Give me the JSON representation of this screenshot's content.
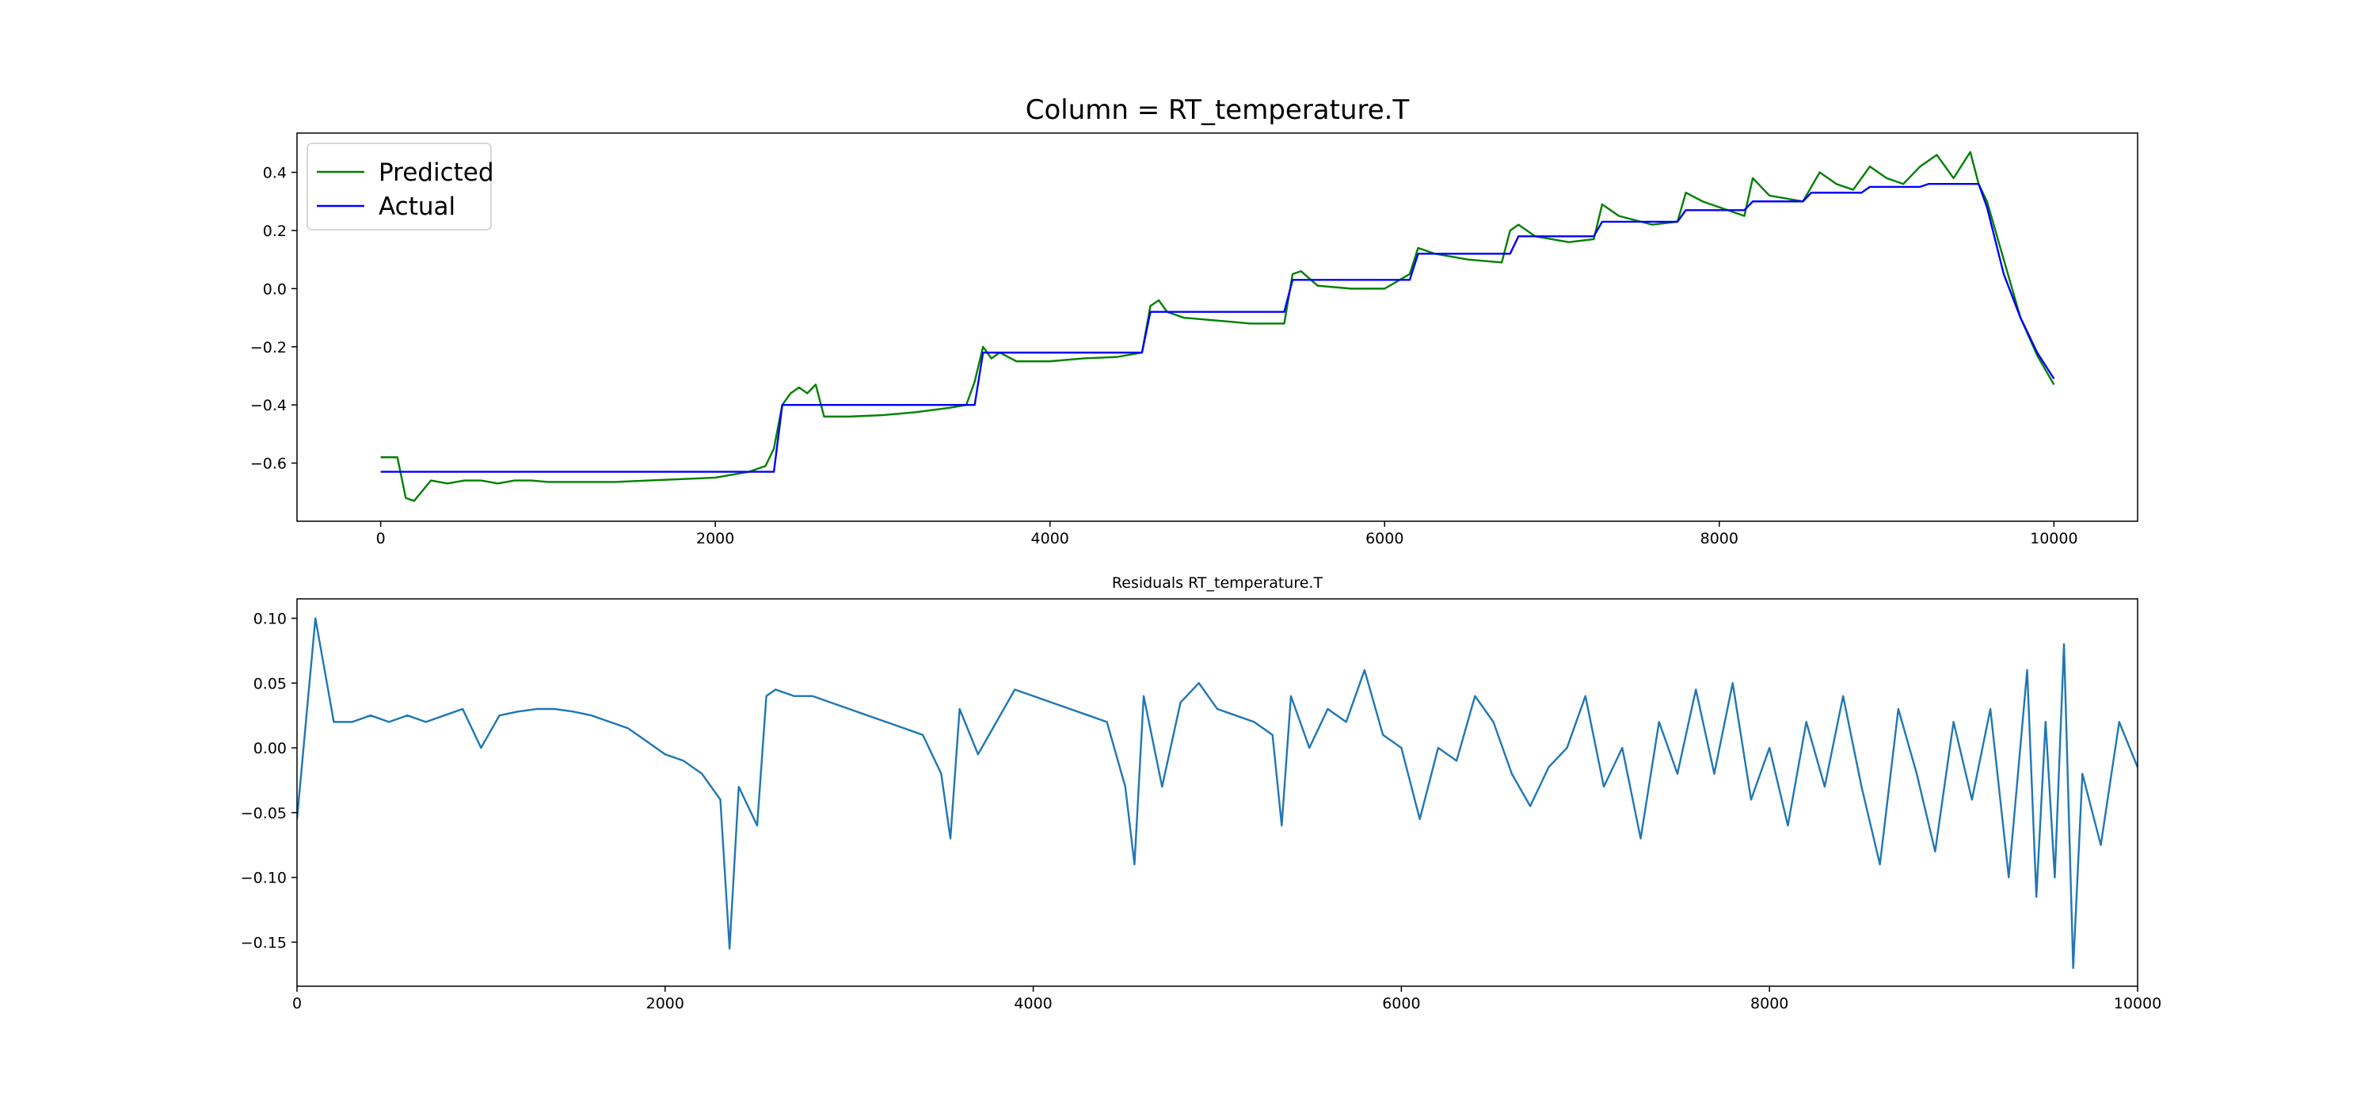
{
  "chart_data": [
    {
      "type": "line",
      "title": "Column = RT_temperature.T",
      "xlim": [
        -500,
        10500
      ],
      "xticks": [
        0,
        2000,
        4000,
        6000,
        8000,
        10000
      ],
      "ylim": [
        -0.8,
        0.535
      ],
      "yticks": [
        {
          "value": -0.6,
          "label": "−0.6"
        },
        {
          "value": -0.4,
          "label": "−0.4"
        },
        {
          "value": -0.2,
          "label": "−0.2"
        },
        {
          "value": 0,
          "label": "0.0"
        },
        0.2,
        0.4
      ],
      "legend": "upper left",
      "series": [
        {
          "name": "Predicted",
          "color": "#008000",
          "x": [
            0,
            100,
            150,
            200,
            300,
            400,
            500,
            600,
            700,
            800,
            900,
            1000,
            1200,
            1400,
            1600,
            1800,
            2000,
            2100,
            2200,
            2300,
            2350,
            2400,
            2450,
            2500,
            2550,
            2600,
            2650,
            2800,
            3000,
            3200,
            3400,
            3500,
            3550,
            3600,
            3650,
            3700,
            3800,
            4000,
            4200,
            4400,
            4550,
            4600,
            4650,
            4700,
            4800,
            5000,
            5200,
            5400,
            5450,
            5500,
            5600,
            5800,
            6000,
            6150,
            6200,
            6300,
            6500,
            6700,
            6750,
            6800,
            6900,
            7100,
            7250,
            7300,
            7400,
            7600,
            7750,
            7800,
            7900,
            8000,
            8150,
            8200,
            8300,
            8500,
            8600,
            8700,
            8800,
            8900,
            9000,
            9100,
            9200,
            9300,
            9400,
            9500,
            9550,
            9600,
            9700,
            9800,
            9900,
            10000
          ],
          "values": [
            -0.58,
            -0.58,
            -0.72,
            -0.73,
            -0.66,
            -0.67,
            -0.66,
            -0.66,
            -0.67,
            -0.66,
            -0.66,
            -0.665,
            -0.665,
            -0.665,
            -0.66,
            -0.655,
            -0.65,
            -0.64,
            -0.63,
            -0.61,
            -0.55,
            -0.4,
            -0.36,
            -0.34,
            -0.36,
            -0.33,
            -0.44,
            -0.44,
            -0.435,
            -0.425,
            -0.41,
            -0.4,
            -0.32,
            -0.2,
            -0.24,
            -0.22,
            -0.25,
            -0.25,
            -0.24,
            -0.235,
            -0.22,
            -0.06,
            -0.04,
            -0.08,
            -0.1,
            -0.11,
            -0.12,
            -0.12,
            0.05,
            0.06,
            0.01,
            0,
            0,
            0.05,
            0.14,
            0.12,
            0.1,
            0.09,
            0.2,
            0.22,
            0.18,
            0.16,
            0.17,
            0.29,
            0.25,
            0.22,
            0.23,
            0.33,
            0.3,
            0.28,
            0.25,
            0.38,
            0.32,
            0.3,
            0.4,
            0.36,
            0.34,
            0.42,
            0.38,
            0.36,
            0.42,
            0.46,
            0.38,
            0.47,
            0.36,
            0.3,
            0.1,
            -0.1,
            -0.23,
            -0.33
          ]
        },
        {
          "name": "Actual",
          "color": "#0000ff",
          "x": [
            0,
            2350,
            2400,
            3550,
            3600,
            4550,
            4600,
            5400,
            5450,
            6150,
            6200,
            6750,
            6800,
            7250,
            7300,
            7750,
            7800,
            8150,
            8200,
            8500,
            8550,
            8850,
            8900,
            9200,
            9250,
            9550,
            9600,
            9700,
            9800,
            9900,
            10000
          ],
          "values": [
            -0.63,
            -0.63,
            -0.4,
            -0.4,
            -0.22,
            -0.22,
            -0.08,
            -0.08,
            0.03,
            0.03,
            0.12,
            0.12,
            0.18,
            0.18,
            0.23,
            0.23,
            0.27,
            0.27,
            0.3,
            0.3,
            0.33,
            0.33,
            0.35,
            0.35,
            0.36,
            0.36,
            0.28,
            0.05,
            -0.1,
            -0.22,
            -0.31
          ]
        }
      ]
    },
    {
      "type": "line",
      "title": "Residuals RT_temperature.T",
      "color": "#1f77b4",
      "xlim": [
        0,
        10000
      ],
      "xticks": [
        0,
        2000,
        4000,
        6000,
        8000,
        10000
      ],
      "ylim": [
        -0.184,
        0.115
      ],
      "yticks": [
        {
          "value": -0.15,
          "label": "−0.15"
        },
        {
          "value": -0.1,
          "label": "−0.10"
        },
        {
          "value": -0.05,
          "label": "−0.05"
        },
        {
          "value": 0,
          "label": "0.00"
        },
        0.05,
        {
          "value": 0.1,
          "label": "0.10"
        }
      ],
      "x": [
        0,
        100,
        200,
        300,
        400,
        500,
        600,
        700,
        800,
        900,
        1000,
        1100,
        1200,
        1300,
        1400,
        1500,
        1600,
        1700,
        1800,
        1900,
        2000,
        2100,
        2200,
        2300,
        2350,
        2400,
        2500,
        2550,
        2600,
        2700,
        2800,
        2900,
        3000,
        3100,
        3200,
        3300,
        3400,
        3500,
        3550,
        3600,
        3700,
        3800,
        3900,
        4000,
        4100,
        4200,
        4300,
        4400,
        4500,
        4550,
        4600,
        4700,
        4800,
        4900,
        5000,
        5100,
        5200,
        5300,
        5350,
        5400,
        5500,
        5600,
        5700,
        5800,
        5900,
        6000,
        6100,
        6200,
        6300,
        6400,
        6500,
        6600,
        6700,
        6800,
        6900,
        7000,
        7100,
        7200,
        7300,
        7400,
        7500,
        7600,
        7700,
        7800,
        7900,
        8000,
        8100,
        8200,
        8300,
        8400,
        8500,
        8600,
        8700,
        8800,
        8900,
        9000,
        9100,
        9200,
        9300,
        9400,
        9450,
        9500,
        9550,
        9600,
        9650,
        9700,
        9800,
        9900,
        10000
      ],
      "values": [
        -0.055,
        0.1,
        0.02,
        0.02,
        0.025,
        0.02,
        0.025,
        0.02,
        0.025,
        0.03,
        0,
        0.025,
        0.028,
        0.03,
        0.03,
        0.028,
        0.025,
        0.02,
        0.015,
        0.005,
        -0.005,
        -0.01,
        -0.02,
        -0.04,
        -0.155,
        -0.03,
        -0.06,
        0.04,
        0.045,
        0.04,
        0.04,
        0.035,
        0.03,
        0.025,
        0.02,
        0.015,
        0.01,
        -0.02,
        -0.07,
        0.03,
        -0.005,
        0.02,
        0.045,
        0.04,
        0.035,
        0.03,
        0.025,
        0.02,
        -0.03,
        -0.09,
        0.04,
        -0.03,
        0.035,
        0.05,
        0.03,
        0.025,
        0.02,
        0.01,
        -0.06,
        0.04,
        0,
        0.03,
        0.02,
        0.06,
        0.01,
        0,
        -0.055,
        0,
        -0.01,
        0.04,
        0.02,
        -0.02,
        -0.045,
        -0.015,
        0,
        0.04,
        -0.03,
        0,
        -0.07,
        0.02,
        -0.02,
        0.045,
        -0.02,
        0.05,
        -0.04,
        0,
        -0.06,
        0.02,
        -0.03,
        0.04,
        -0.03,
        -0.09,
        0.03,
        -0.02,
        -0.08,
        0.02,
        -0.04,
        0.03,
        -0.1,
        0.06,
        -0.115,
        0.02,
        -0.1,
        0.08,
        -0.17,
        -0.02,
        -0.075,
        0.02,
        -0.015
      ]
    }
  ]
}
